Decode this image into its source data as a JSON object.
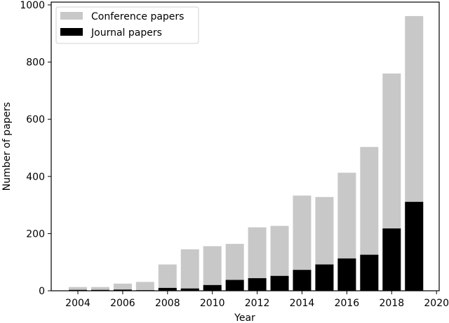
{
  "chart_data": {
    "type": "bar",
    "stacked": true,
    "title": "",
    "xlabel": "Year",
    "ylabel": "Number of papers",
    "categories": [
      "2004",
      "2005",
      "2006",
      "2007",
      "2008",
      "2009",
      "2010",
      "2011",
      "2012",
      "2013",
      "2014",
      "2015",
      "2016",
      "2017",
      "2018",
      "2019"
    ],
    "series": [
      {
        "name": "Conference papers",
        "color": "#c8c8c8",
        "values_total": [
          13,
          13,
          25,
          31,
          92,
          145,
          156,
          164,
          222,
          227,
          333,
          328,
          413,
          503,
          760,
          961
        ]
      },
      {
        "name": "Journal papers",
        "color": "#000000",
        "values": [
          3,
          3,
          4,
          2,
          10,
          8,
          20,
          38,
          44,
          52,
          73,
          92,
          113,
          126,
          218,
          311
        ]
      }
    ],
    "note": "Conference bars are drawn as total height (conference + journal) behind the journal bars",
    "xticks": [
      "2004",
      "2006",
      "2008",
      "2010",
      "2012",
      "2014",
      "2016",
      "2018",
      "2020"
    ],
    "yticks": [
      "0",
      "200",
      "400",
      "600",
      "800",
      "1000"
    ],
    "xlim": [
      2002.8,
      2020.1
    ],
    "ylim": [
      0,
      1000
    ],
    "grid": false,
    "legend_position": "upper left"
  }
}
